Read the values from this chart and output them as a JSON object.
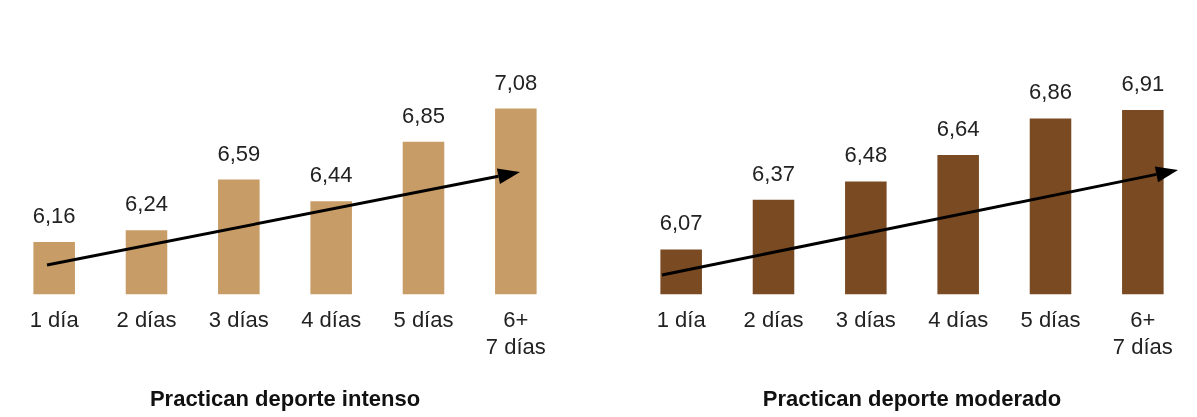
{
  "chart_data": [
    {
      "type": "bar",
      "title": "Practican deporte intenso",
      "categories": [
        "1 día",
        "2 días",
        "3 días",
        "4 días",
        "5 días",
        "6+\n7 días"
      ],
      "values": [
        6.16,
        6.24,
        6.59,
        6.44,
        6.85,
        7.08
      ],
      "value_labels": [
        "6,16",
        "6,24",
        "6,59",
        "6,44",
        "6,85",
        "7,08"
      ],
      "color": "#c89c66",
      "grid": false,
      "legend": false,
      "tick_labels": "x"
    },
    {
      "type": "bar",
      "title": "Practican deporte moderado",
      "categories": [
        "1 día",
        "2 días",
        "3 días",
        "4 días",
        "5 días",
        "6+\n7 días"
      ],
      "values": [
        6.07,
        6.37,
        6.48,
        6.64,
        6.86,
        6.91
      ],
      "value_labels": [
        "6,07",
        "6,37",
        "6,48",
        "6,64",
        "6,86",
        "6,91"
      ],
      "color": "#7a4a22",
      "grid": false,
      "legend": false,
      "tick_labels": "x"
    }
  ]
}
